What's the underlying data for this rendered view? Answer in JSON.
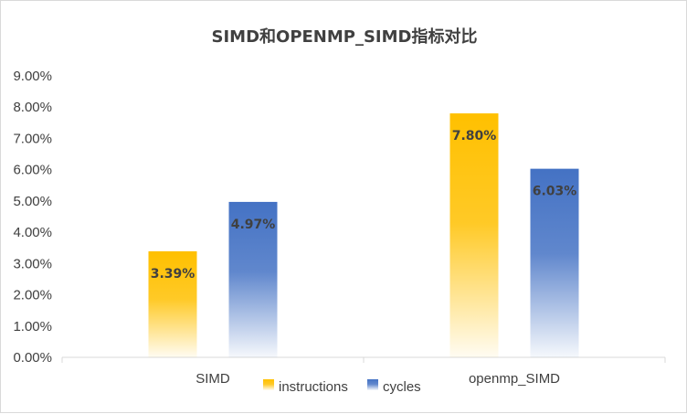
{
  "chart_data": {
    "type": "bar",
    "title": "SIMD和OPENMP_SIMD指标对比",
    "categories": [
      "SIMD",
      "openmp_SIMD"
    ],
    "series": [
      {
        "name": "instructions",
        "values": [
          3.39,
          7.8
        ],
        "labels": [
          "3.39%",
          "7.80%"
        ],
        "color": "#FFC000"
      },
      {
        "name": "cycles",
        "values": [
          4.97,
          6.03
        ],
        "labels": [
          "4.97%",
          "6.03%"
        ],
        "color": "#4472C4"
      }
    ],
    "ylim": [
      0,
      9
    ],
    "ytick_labels": [
      "0.00%",
      "1.00%",
      "2.00%",
      "3.00%",
      "4.00%",
      "5.00%",
      "6.00%",
      "7.00%",
      "8.00%",
      "9.00%"
    ],
    "xlabel": "",
    "ylabel": "",
    "grid": false,
    "legend_position": "bottom"
  }
}
